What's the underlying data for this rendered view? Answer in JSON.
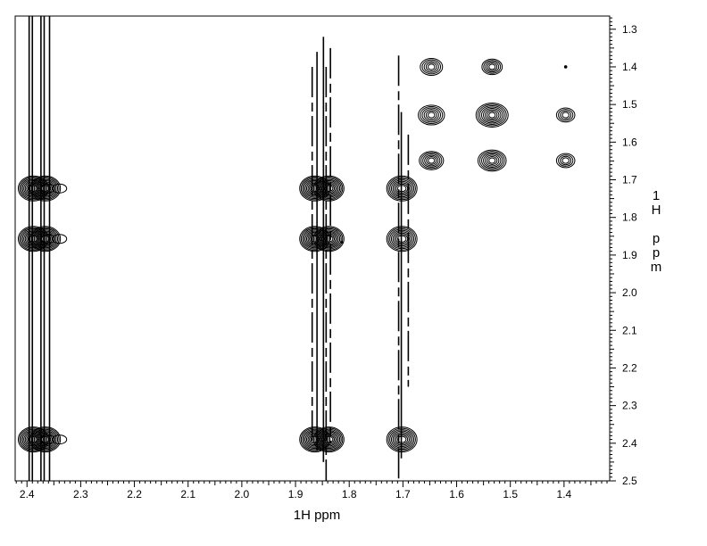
{
  "chart_data": {
    "type": "contour",
    "title": "",
    "xlabel": "1H ppm",
    "ylabel_letters": [
      "1",
      "H",
      "",
      "p",
      "p",
      "m"
    ],
    "x_axis": {
      "reversed": true,
      "lim": [
        2.422,
        1.315
      ],
      "ticks": [
        2.4,
        2.3,
        2.2,
        2.1,
        2.0,
        1.9,
        1.8,
        1.7,
        1.6,
        1.5,
        1.4
      ],
      "tick_labels": [
        "2.4",
        "2.3",
        "2.2",
        "2.1",
        "2.0",
        "1.9",
        "1.8",
        "1.7",
        "1.6",
        "1.5",
        "1.4"
      ],
      "minor_step": 0.01
    },
    "y_axis": {
      "reversed": true,
      "position": "right",
      "lim": [
        1.265,
        2.5
      ],
      "ticks": [
        1.3,
        1.4,
        1.5,
        1.6,
        1.7,
        1.8,
        1.9,
        2.0,
        2.1,
        2.2,
        2.3,
        2.4,
        2.5
      ],
      "tick_labels": [
        "1.3",
        "1.4",
        "1.5",
        "1.6",
        "1.7",
        "1.8",
        "1.9",
        "2.0",
        "2.1",
        "2.2",
        "2.3",
        "2.4",
        "2.5"
      ],
      "minor_step": 0.01
    },
    "grid": false,
    "legend": "none",
    "peak_groups": [
      {
        "x": 2.388,
        "ys": [
          1.723,
          1.857,
          2.39
        ],
        "rings": 9,
        "tail": true
      },
      {
        "x": 2.366,
        "ys": [
          1.723,
          1.857,
          2.39
        ],
        "rings": 9,
        "tail": true
      },
      {
        "x": 1.864,
        "ys": [
          1.723,
          1.857,
          2.39
        ],
        "rings": 9,
        "tail": false
      },
      {
        "x": 1.838,
        "ys": [
          1.723,
          1.857,
          2.39
        ],
        "rings": 9,
        "tail": false
      },
      {
        "x": 1.702,
        "ys": [
          1.723,
          1.857,
          2.39
        ],
        "rings": 8,
        "tail": false
      }
    ],
    "small_peaks": [
      {
        "x": 1.647,
        "y": 1.4,
        "size": 1.0
      },
      {
        "x": 1.647,
        "y": 1.528,
        "size": 1.2
      },
      {
        "x": 1.647,
        "y": 1.649,
        "size": 1.1
      },
      {
        "x": 1.534,
        "y": 1.4,
        "size": 0.9
      },
      {
        "x": 1.534,
        "y": 1.528,
        "size": 1.5
      },
      {
        "x": 1.534,
        "y": 1.649,
        "size": 1.3
      },
      {
        "x": 1.397,
        "y": 1.4,
        "size": 0.2
      },
      {
        "x": 1.397,
        "y": 1.528,
        "size": 0.8
      },
      {
        "x": 1.397,
        "y": 1.649,
        "size": 0.8
      }
    ],
    "streaks": [
      {
        "x": 2.396,
        "y1": 1.265,
        "y2": 2.5,
        "dash": false
      },
      {
        "x": 2.39,
        "y1": 1.265,
        "y2": 2.5,
        "dash": false
      },
      {
        "x": 2.374,
        "y1": 1.265,
        "y2": 2.5,
        "dash": false
      },
      {
        "x": 2.368,
        "y1": 1.265,
        "y2": 2.5,
        "dash": false
      },
      {
        "x": 2.358,
        "y1": 1.265,
        "y2": 2.5,
        "dash": false
      },
      {
        "x": 1.869,
        "y1": 1.4,
        "y2": 2.4,
        "dash": true
      },
      {
        "x": 1.86,
        "y1": 1.36,
        "y2": 2.42,
        "dash": false
      },
      {
        "x": 1.848,
        "y1": 1.32,
        "y2": 2.45,
        "dash": false
      },
      {
        "x": 1.843,
        "y1": 1.4,
        "y2": 2.5,
        "dash": true
      },
      {
        "x": 1.835,
        "y1": 1.35,
        "y2": 2.4,
        "dash": true
      },
      {
        "x": 1.708,
        "y1": 1.37,
        "y2": 2.5,
        "dash": true
      },
      {
        "x": 1.703,
        "y1": 1.52,
        "y2": 2.44,
        "dash": false
      },
      {
        "x": 1.69,
        "y1": 1.58,
        "y2": 2.25,
        "dash": true
      }
    ],
    "stray_dots": [
      {
        "x": 1.814,
        "y": 1.866
      },
      {
        "x": 1.397,
        "y": 1.4
      }
    ]
  }
}
